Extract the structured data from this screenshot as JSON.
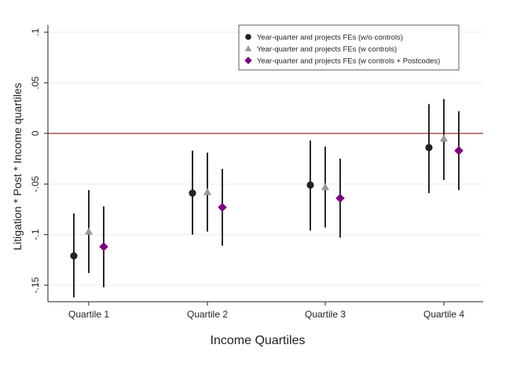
{
  "chart_data": {
    "type": "scatter",
    "title": "",
    "xlabel": "Income Quartiles",
    "ylabel": "Litigation * Post * Income quartiles",
    "categories": [
      "Quartile 1",
      "Quartile 2",
      "Quartile 3",
      "Quartile 4"
    ],
    "ylim": [
      -0.17,
      0.105
    ],
    "yticks": [
      0.1,
      0.05,
      0,
      -0.05,
      -0.1,
      -0.15
    ],
    "ytick_labels": [
      ".1",
      ".05",
      "0",
      "-.05",
      "-.1",
      "-.15"
    ],
    "reference_line": {
      "y": 0,
      "color": "#8b1a1a"
    },
    "grid": true,
    "legend_position": "top-right",
    "series": [
      {
        "name": "Year-quarter and projects FEs (w/o controls)",
        "marker": "circle",
        "color": "#222222",
        "values": [
          -0.121,
          -0.059,
          -0.051,
          -0.014
        ],
        "ci_low": [
          -0.162,
          -0.1,
          -0.096,
          -0.059
        ],
        "ci_high": [
          -0.079,
          -0.017,
          -0.007,
          0.029
        ]
      },
      {
        "name": "Year-quarter and projects FEs (w controls)",
        "marker": "triangle",
        "color": "#999999",
        "values": [
          -0.097,
          -0.058,
          -0.053,
          -0.005
        ],
        "ci_low": [
          -0.138,
          -0.097,
          -0.093,
          -0.046
        ],
        "ci_high": [
          -0.056,
          -0.019,
          -0.013,
          0.034
        ]
      },
      {
        "name": "Year-quarter and projects FEs (w controls + Postcodes)",
        "marker": "diamond",
        "color": "#800080",
        "values": [
          -0.112,
          -0.073,
          -0.064,
          -0.017
        ],
        "ci_low": [
          -0.152,
          -0.111,
          -0.103,
          -0.056
        ],
        "ci_high": [
          -0.072,
          -0.035,
          -0.025,
          0.022
        ]
      }
    ]
  }
}
